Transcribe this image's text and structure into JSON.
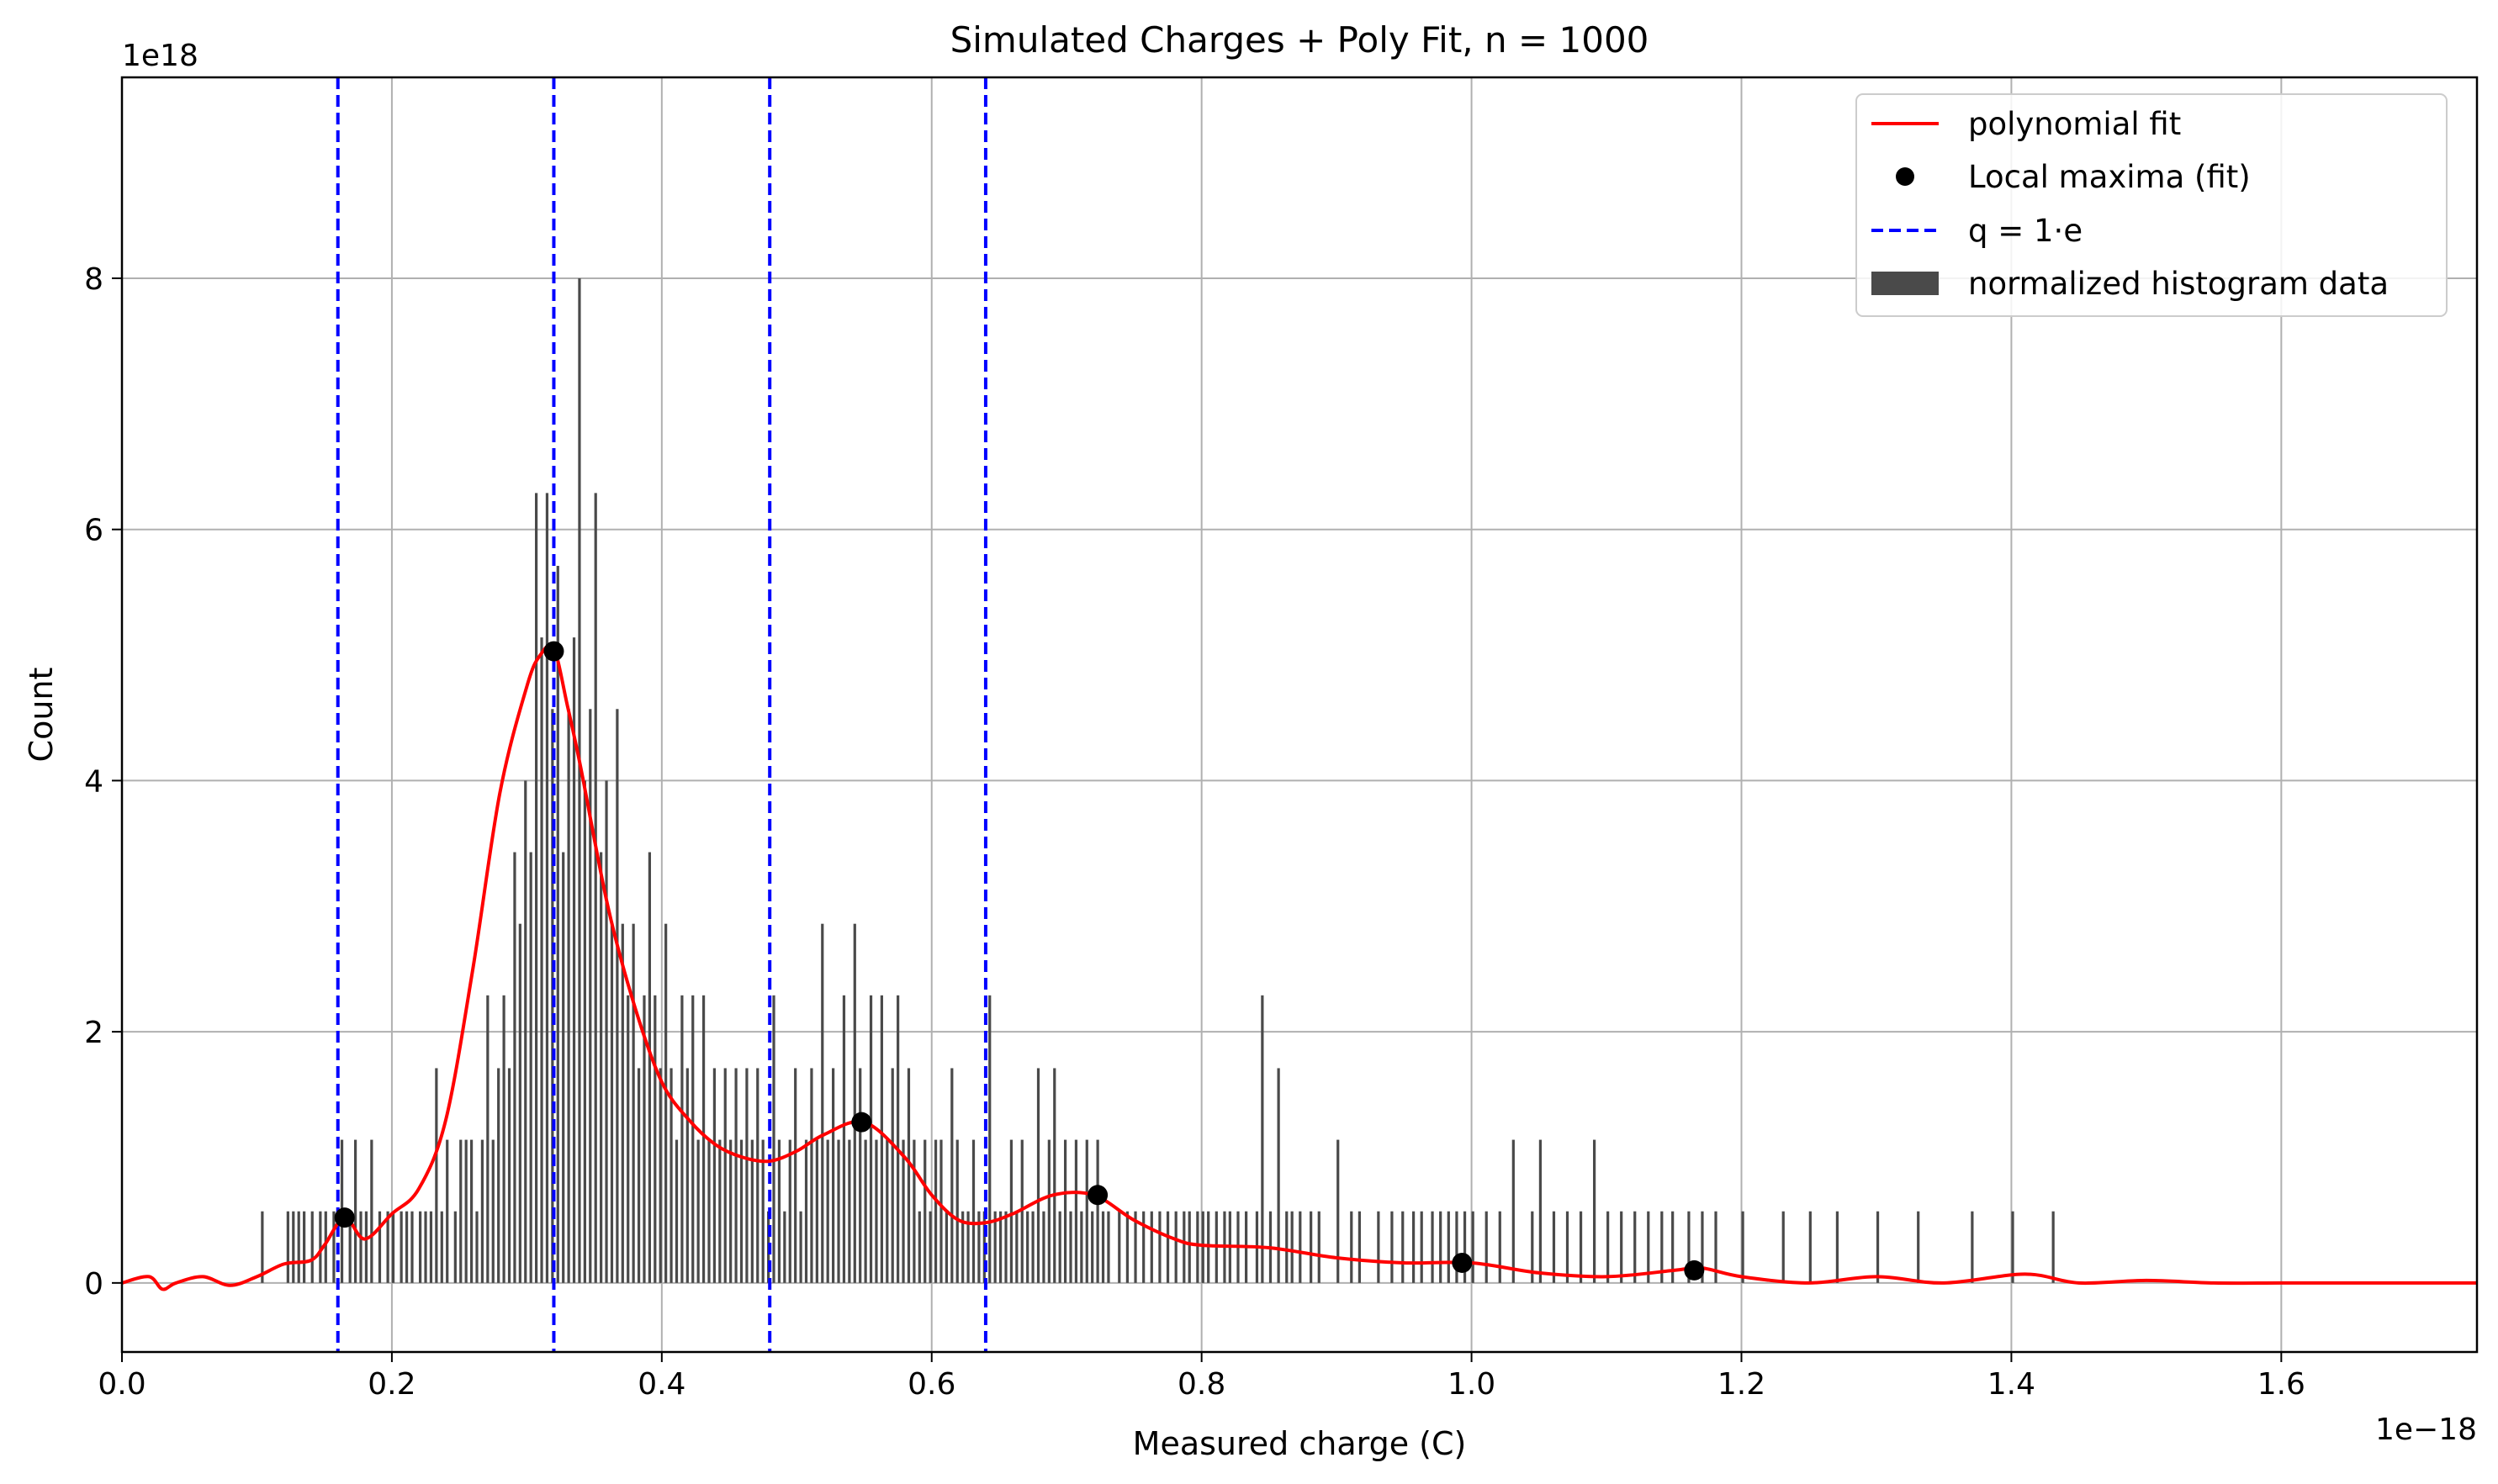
{
  "chart_data": {
    "type": "bar",
    "title": "Simulated Charges + Poly Fit, n = 1000",
    "xlabel": "Measured charge (C)",
    "ylabel": "Count",
    "x_offset_text": "1e−18",
    "y_offset_text": "1e18",
    "xlim": [
      0.0,
      1.745
    ],
    "ylim": [
      -0.55,
      9.6
    ],
    "xticks": [
      "0.0",
      "0.2",
      "0.4",
      "0.6",
      "0.8",
      "1.0",
      "1.2",
      "1.4",
      "1.6"
    ],
    "yticks": [
      "0",
      "2",
      "4",
      "6",
      "8"
    ],
    "grid": true,
    "legend_position": "top-right",
    "legend": [
      {
        "label": "polynomial fit",
        "style": "line",
        "color": "#ff0000"
      },
      {
        "label": "Local maxima (fit)",
        "style": "marker",
        "color": "#000000"
      },
      {
        "label": "q = 1·e",
        "style": "dashed",
        "color": "#0000ff"
      },
      {
        "label": "normalized histogram data",
        "style": "patch",
        "color": "#4a4a4a"
      }
    ],
    "colors": {
      "histogram": "#4a4a4a",
      "fit": "#ff0000",
      "maxima": "#000000",
      "q_lines": "#0000ff",
      "grid": "#b0b0b0"
    },
    "histogram": {
      "bin_width": 0.002,
      "bins": [
        [
          0.103,
          0.57
        ],
        [
          0.122,
          0.57
        ],
        [
          0.126,
          0.57
        ],
        [
          0.13,
          0.57
        ],
        [
          0.134,
          0.57
        ],
        [
          0.14,
          0.57
        ],
        [
          0.146,
          0.57
        ],
        [
          0.15,
          0.57
        ],
        [
          0.156,
          0.57
        ],
        [
          0.162,
          1.14
        ],
        [
          0.168,
          0.57
        ],
        [
          0.172,
          1.14
        ],
        [
          0.176,
          0.57
        ],
        [
          0.18,
          0.57
        ],
        [
          0.184,
          1.14
        ],
        [
          0.19,
          0.57
        ],
        [
          0.196,
          0.57
        ],
        [
          0.2,
          0.57
        ],
        [
          0.206,
          0.57
        ],
        [
          0.21,
          0.57
        ],
        [
          0.214,
          0.57
        ],
        [
          0.22,
          0.57
        ],
        [
          0.224,
          0.57
        ],
        [
          0.228,
          0.57
        ],
        [
          0.232,
          1.71
        ],
        [
          0.236,
          0.57
        ],
        [
          0.24,
          1.14
        ],
        [
          0.246,
          0.57
        ],
        [
          0.25,
          1.14
        ],
        [
          0.254,
          1.14
        ],
        [
          0.258,
          1.14
        ],
        [
          0.262,
          0.57
        ],
        [
          0.266,
          1.14
        ],
        [
          0.27,
          2.29
        ],
        [
          0.274,
          1.14
        ],
        [
          0.278,
          1.71
        ],
        [
          0.282,
          2.29
        ],
        [
          0.286,
          1.71
        ],
        [
          0.29,
          3.43
        ],
        [
          0.294,
          2.86
        ],
        [
          0.298,
          4.0
        ],
        [
          0.302,
          3.43
        ],
        [
          0.306,
          6.29
        ],
        [
          0.31,
          5.14
        ],
        [
          0.314,
          6.29
        ],
        [
          0.318,
          4.57
        ],
        [
          0.322,
          5.71
        ],
        [
          0.326,
          3.43
        ],
        [
          0.33,
          4.57
        ],
        [
          0.334,
          5.14
        ],
        [
          0.338,
          8.0
        ],
        [
          0.342,
          4.0
        ],
        [
          0.346,
          4.57
        ],
        [
          0.35,
          6.29
        ],
        [
          0.354,
          3.43
        ],
        [
          0.358,
          4.0
        ],
        [
          0.362,
          2.86
        ],
        [
          0.366,
          4.57
        ],
        [
          0.37,
          2.86
        ],
        [
          0.374,
          2.29
        ],
        [
          0.378,
          2.86
        ],
        [
          0.382,
          1.71
        ],
        [
          0.386,
          2.29
        ],
        [
          0.39,
          3.43
        ],
        [
          0.394,
          2.29
        ],
        [
          0.398,
          1.71
        ],
        [
          0.402,
          2.86
        ],
        [
          0.406,
          1.71
        ],
        [
          0.41,
          1.14
        ],
        [
          0.414,
          2.29
        ],
        [
          0.418,
          1.71
        ],
        [
          0.422,
          2.29
        ],
        [
          0.426,
          1.14
        ],
        [
          0.43,
          2.29
        ],
        [
          0.434,
          1.14
        ],
        [
          0.438,
          1.71
        ],
        [
          0.442,
          1.14
        ],
        [
          0.446,
          1.71
        ],
        [
          0.45,
          1.14
        ],
        [
          0.454,
          1.71
        ],
        [
          0.458,
          1.14
        ],
        [
          0.462,
          1.71
        ],
        [
          0.466,
          1.14
        ],
        [
          0.47,
          1.71
        ],
        [
          0.474,
          1.14
        ],
        [
          0.478,
          0.57
        ],
        [
          0.482,
          2.29
        ],
        [
          0.486,
          1.14
        ],
        [
          0.49,
          0.57
        ],
        [
          0.494,
          1.14
        ],
        [
          0.498,
          1.71
        ],
        [
          0.502,
          0.57
        ],
        [
          0.506,
          1.14
        ],
        [
          0.51,
          1.71
        ],
        [
          0.514,
          1.14
        ],
        [
          0.518,
          2.86
        ],
        [
          0.522,
          1.14
        ],
        [
          0.526,
          1.71
        ],
        [
          0.53,
          1.14
        ],
        [
          0.534,
          2.29
        ],
        [
          0.538,
          1.14
        ],
        [
          0.542,
          2.86
        ],
        [
          0.546,
          1.71
        ],
        [
          0.55,
          1.14
        ],
        [
          0.554,
          2.29
        ],
        [
          0.558,
          1.14
        ],
        [
          0.562,
          2.29
        ],
        [
          0.566,
          1.14
        ],
        [
          0.57,
          1.71
        ],
        [
          0.574,
          2.29
        ],
        [
          0.578,
          1.14
        ],
        [
          0.582,
          1.71
        ],
        [
          0.586,
          1.14
        ],
        [
          0.59,
          0.57
        ],
        [
          0.594,
          1.14
        ],
        [
          0.598,
          0.57
        ],
        [
          0.602,
          1.14
        ],
        [
          0.606,
          1.14
        ],
        [
          0.61,
          0.57
        ],
        [
          0.614,
          1.71
        ],
        [
          0.618,
          1.14
        ],
        [
          0.622,
          0.57
        ],
        [
          0.626,
          0.57
        ],
        [
          0.63,
          1.14
        ],
        [
          0.634,
          0.57
        ],
        [
          0.638,
          0.57
        ],
        [
          0.642,
          2.29
        ],
        [
          0.646,
          0.57
        ],
        [
          0.65,
          0.57
        ],
        [
          0.654,
          0.57
        ],
        [
          0.658,
          1.14
        ],
        [
          0.662,
          0.57
        ],
        [
          0.666,
          1.14
        ],
        [
          0.67,
          0.57
        ],
        [
          0.674,
          0.57
        ],
        [
          0.678,
          1.71
        ],
        [
          0.682,
          0.57
        ],
        [
          0.686,
          1.14
        ],
        [
          0.69,
          1.71
        ],
        [
          0.694,
          0.57
        ],
        [
          0.698,
          1.14
        ],
        [
          0.702,
          0.57
        ],
        [
          0.706,
          1.14
        ],
        [
          0.71,
          0.57
        ],
        [
          0.714,
          1.14
        ],
        [
          0.718,
          0.57
        ],
        [
          0.722,
          1.14
        ],
        [
          0.726,
          0.57
        ],
        [
          0.73,
          0.57
        ],
        [
          0.738,
          0.57
        ],
        [
          0.744,
          0.57
        ],
        [
          0.75,
          0.57
        ],
        [
          0.756,
          0.57
        ],
        [
          0.762,
          0.57
        ],
        [
          0.768,
          0.57
        ],
        [
          0.774,
          0.57
        ],
        [
          0.78,
          0.57
        ],
        [
          0.786,
          0.57
        ],
        [
          0.79,
          0.57
        ],
        [
          0.796,
          0.57
        ],
        [
          0.8,
          0.57
        ],
        [
          0.804,
          0.57
        ],
        [
          0.81,
          0.57
        ],
        [
          0.816,
          0.57
        ],
        [
          0.82,
          0.57
        ],
        [
          0.826,
          0.57
        ],
        [
          0.832,
          0.57
        ],
        [
          0.84,
          0.57
        ],
        [
          0.844,
          2.29
        ],
        [
          0.85,
          0.57
        ],
        [
          0.856,
          1.71
        ],
        [
          0.862,
          0.57
        ],
        [
          0.866,
          0.57
        ],
        [
          0.872,
          0.57
        ],
        [
          0.88,
          0.57
        ],
        [
          0.886,
          0.57
        ],
        [
          0.9,
          1.14
        ],
        [
          0.91,
          0.57
        ],
        [
          0.916,
          0.57
        ],
        [
          0.93,
          0.57
        ],
        [
          0.94,
          0.57
        ],
        [
          0.948,
          0.57
        ],
        [
          0.956,
          0.57
        ],
        [
          0.962,
          0.57
        ],
        [
          0.97,
          0.57
        ],
        [
          0.976,
          0.57
        ],
        [
          0.982,
          0.57
        ],
        [
          0.988,
          0.57
        ],
        [
          0.994,
          0.57
        ],
        [
          1.0,
          0.57
        ],
        [
          1.01,
          0.57
        ],
        [
          1.02,
          0.57
        ],
        [
          1.03,
          1.14
        ],
        [
          1.044,
          0.57
        ],
        [
          1.05,
          1.14
        ],
        [
          1.06,
          0.57
        ],
        [
          1.07,
          0.57
        ],
        [
          1.08,
          0.57
        ],
        [
          1.09,
          1.14
        ],
        [
          1.1,
          0.57
        ],
        [
          1.11,
          0.57
        ],
        [
          1.12,
          0.57
        ],
        [
          1.13,
          0.57
        ],
        [
          1.14,
          0.57
        ],
        [
          1.148,
          0.57
        ],
        [
          1.16,
          0.57
        ],
        [
          1.17,
          0.57
        ],
        [
          1.18,
          0.57
        ],
        [
          1.2,
          0.57
        ],
        [
          1.23,
          0.57
        ],
        [
          1.25,
          0.57
        ],
        [
          1.27,
          0.57
        ],
        [
          1.3,
          0.57
        ],
        [
          1.33,
          0.57
        ],
        [
          1.37,
          0.57
        ],
        [
          1.4,
          0.57
        ],
        [
          1.43,
          0.57
        ]
      ]
    },
    "fit_curve": {
      "x": [
        0.0,
        0.02,
        0.03,
        0.04,
        0.06,
        0.08,
        0.1,
        0.12,
        0.14,
        0.15,
        0.165,
        0.18,
        0.2,
        0.22,
        0.24,
        0.26,
        0.28,
        0.3,
        0.31,
        0.32,
        0.33,
        0.34,
        0.36,
        0.38,
        0.4,
        0.42,
        0.44,
        0.46,
        0.48,
        0.5,
        0.52,
        0.55,
        0.58,
        0.6,
        0.62,
        0.64,
        0.66,
        0.69,
        0.72,
        0.75,
        0.78,
        0.8,
        0.85,
        0.9,
        0.95,
        1.0,
        1.05,
        1.1,
        1.15,
        1.17,
        1.2,
        1.25,
        1.3,
        1.35,
        1.41,
        1.45,
        1.5,
        1.55,
        1.6,
        1.65,
        1.7,
        1.745
      ],
      "y": [
        0.0,
        0.05,
        -0.05,
        0.0,
        0.05,
        -0.02,
        0.05,
        0.15,
        0.18,
        0.3,
        0.52,
        0.35,
        0.55,
        0.75,
        1.3,
        2.5,
        3.9,
        4.75,
        5.0,
        5.05,
        4.6,
        4.1,
        3.0,
        2.2,
        1.6,
        1.3,
        1.1,
        1.0,
        0.97,
        1.05,
        1.18,
        1.28,
        1.0,
        0.7,
        0.5,
        0.48,
        0.55,
        0.7,
        0.7,
        0.5,
        0.35,
        0.3,
        0.28,
        0.2,
        0.16,
        0.16,
        0.08,
        0.05,
        0.1,
        0.12,
        0.05,
        0.0,
        0.05,
        0.0,
        0.07,
        0.0,
        0.02,
        0.0,
        0.0,
        0.0,
        0.0,
        0.0
      ]
    },
    "local_maxima": {
      "x": [
        0.165,
        0.32,
        0.548,
        0.723,
        0.993,
        1.165
      ],
      "y": [
        0.52,
        5.03,
        1.28,
        0.7,
        0.16,
        0.1
      ]
    },
    "q_lines": [
      0.16,
      0.32,
      0.48,
      0.64
    ]
  }
}
